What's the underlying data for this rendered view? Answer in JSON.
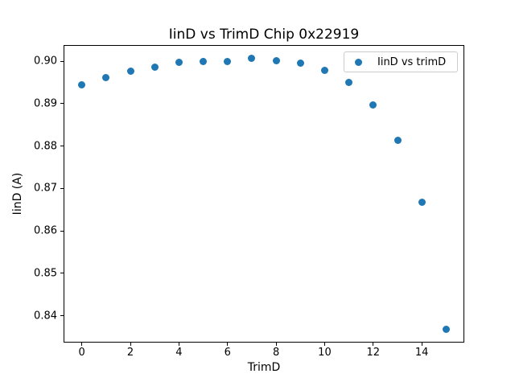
{
  "chart_data": {
    "type": "scatter",
    "title": "IinD vs TrimD Chip 0x22919",
    "xlabel": "TrimD",
    "ylabel": "IinD (A)",
    "legend": {
      "label": "IinD vs trimD",
      "position": "upper-right"
    },
    "x": [
      0,
      1,
      2,
      3,
      4,
      5,
      6,
      7,
      8,
      9,
      10,
      11,
      12,
      13,
      14,
      15
    ],
    "values": [
      0.8945,
      0.8961,
      0.8976,
      0.8985,
      0.8997,
      0.8999,
      0.9,
      0.9006,
      0.9002,
      0.8995,
      0.8978,
      0.8949,
      0.8896,
      0.8813,
      0.8667,
      0.8369
    ],
    "xticks": [
      0,
      2,
      4,
      6,
      8,
      10,
      12,
      14
    ],
    "yticks": [
      0.84,
      0.85,
      0.86,
      0.87,
      0.88,
      0.89,
      0.9
    ],
    "xlim": [
      -0.75,
      15.75
    ],
    "ylim": [
      0.8337,
      0.9038
    ],
    "grid": false,
    "marker_color": "#1f77b4",
    "text_color": "#000000"
  }
}
